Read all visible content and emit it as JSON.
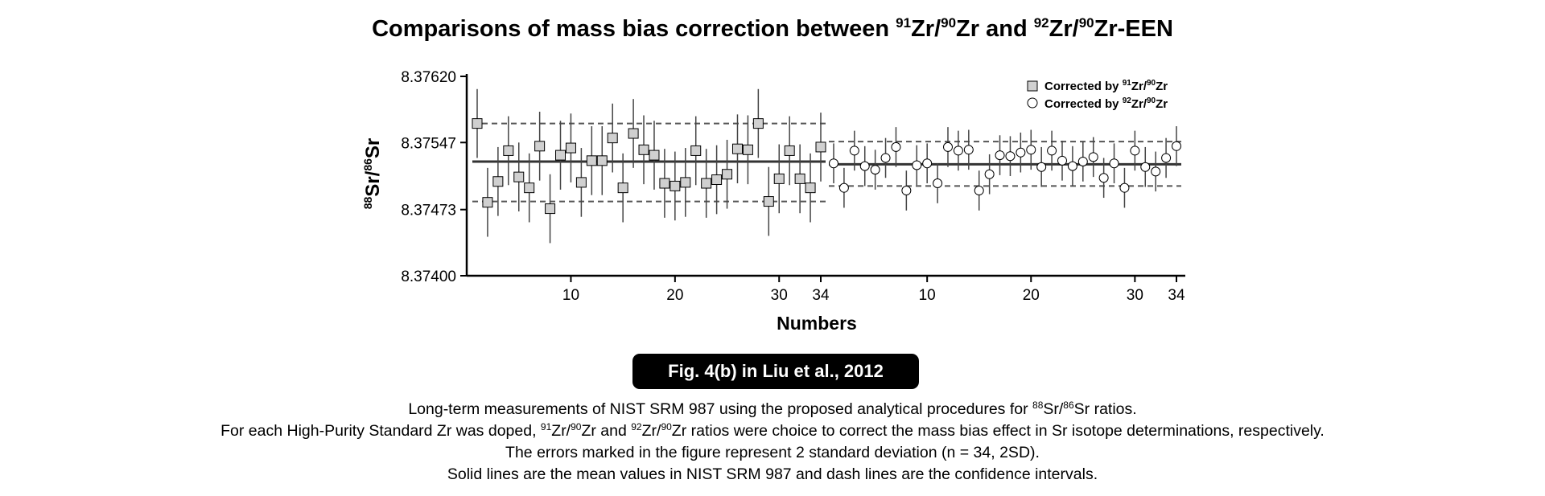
{
  "title": {
    "prefix": "Comparisons of mass bias correction between ",
    "iso1_num": "91",
    "el1": "Zr/",
    "iso1_den": "90",
    "el1b": "Zr and ",
    "iso2_num": "92",
    "el2": "Zr/",
    "iso2_den": "90",
    "el2b": "Zr-EEN"
  },
  "badge": "Fig. 4(b) in Liu et al., 2012",
  "caption": {
    "line1_pre": "Long-term measurements of NIST SRM 987 using the proposed analytical procedures for ",
    "line1_sup1": "88",
    "line1_mid": "Sr/",
    "line1_sup2": "86",
    "line1_post": "Sr ratios.",
    "line2_pre": "For each High-Purity Standard Zr was doped, ",
    "line2_sup1": "91",
    "line2_a": "Zr/",
    "line2_sup2": "90",
    "line2_b": "Zr and ",
    "line2_sup3": "92",
    "line2_c": "Zr/",
    "line2_sup4": "90",
    "line2_post": "Zr ratios were choice to correct the mass bias effect in Sr isotope determinations, respectively.",
    "line3": "The errors marked in the figure represent 2 standard deviation (n = 34, 2SD).",
    "line4": "Solid lines are the mean values in NIST SRM 987 and dash lines are the confidence intervals."
  },
  "chart_data": {
    "type": "scatter",
    "xlabel": "Numbers",
    "ylabel": {
      "sup1": "88",
      "a": "Sr/",
      "sup2": "86",
      "b": "Sr"
    },
    "ylim": [
      8.374,
      8.3762
    ],
    "yticks": [
      "8.37620",
      "8.37547",
      "8.37473",
      "8.37400"
    ],
    "xticks": [
      "10",
      "20",
      "30",
      "34"
    ],
    "legend_position": "top-right",
    "series": [
      {
        "name": "Corrected by 91Zr/90Zr",
        "legend": {
          "pre": "Corrected by ",
          "sup1": "91",
          "a": "Zr/",
          "sup2": "90",
          "b": "Zr"
        },
        "marker": "square",
        "x": [
          1,
          2,
          3,
          4,
          5,
          6,
          7,
          8,
          9,
          10,
          11,
          12,
          13,
          14,
          15,
          16,
          17,
          18,
          19,
          20,
          21,
          22,
          23,
          24,
          25,
          26,
          27,
          28,
          29,
          30,
          31,
          32,
          33,
          34
        ],
        "y": [
          8.37568,
          8.37481,
          8.37504,
          8.37538,
          8.37509,
          8.37497,
          8.37543,
          8.37474,
          8.37533,
          8.37541,
          8.37503,
          8.37527,
          8.37527,
          8.37552,
          8.37497,
          8.37557,
          8.37539,
          8.37533,
          8.37502,
          8.37499,
          8.37503,
          8.37538,
          8.37502,
          8.37506,
          8.37512,
          8.3754,
          8.37539,
          8.37568,
          8.37482,
          8.37507,
          8.37538,
          8.37507,
          8.37497,
          8.37542
        ],
        "error": [
          0.00038,
          0.00038,
          0.00038,
          0.00038,
          0.00038,
          0.00038,
          0.00038,
          0.00038,
          0.00038,
          0.00038,
          0.00038,
          0.00038,
          0.00038,
          0.00038,
          0.00038,
          0.00038,
          0.00038,
          0.00038,
          0.00038,
          0.00038,
          0.00038,
          0.00038,
          0.00038,
          0.00038,
          0.00038,
          0.00038,
          0.00038,
          0.00038,
          0.00038,
          0.00038,
          0.00038,
          0.00038,
          0.00038,
          0.00038
        ],
        "mean": 8.37526,
        "ci": [
          8.37568,
          8.37482
        ]
      },
      {
        "name": "Corrected by 92Zr/90Zr",
        "legend": {
          "pre": "Corrected by ",
          "sup1": "92",
          "a": "Zr/",
          "sup2": "90",
          "b": "Zr"
        },
        "marker": "circle",
        "x": [
          1,
          2,
          3,
          4,
          5,
          6,
          7,
          8,
          9,
          10,
          11,
          12,
          13,
          14,
          15,
          16,
          17,
          18,
          19,
          20,
          21,
          22,
          23,
          24,
          25,
          26,
          27,
          28,
          29,
          30,
          31,
          32,
          33,
          34
        ],
        "y": [
          8.37524,
          8.37497,
          8.37538,
          8.37521,
          8.37517,
          8.3753,
          8.37542,
          8.37494,
          8.37522,
          8.37524,
          8.37502,
          8.37542,
          8.37538,
          8.37539,
          8.37494,
          8.37512,
          8.37533,
          8.37532,
          8.37536,
          8.37539,
          8.3752,
          8.37538,
          8.37527,
          8.37521,
          8.37526,
          8.37531,
          8.37508,
          8.37524,
          8.37497,
          8.37538,
          8.3752,
          8.37515,
          8.3753,
          8.37543
        ],
        "error": [
          0.00022,
          0.00022,
          0.00022,
          0.00022,
          0.00022,
          0.00022,
          0.00022,
          0.00022,
          0.00022,
          0.00022,
          0.00022,
          0.00022,
          0.00022,
          0.00022,
          0.00022,
          0.00022,
          0.00022,
          0.00022,
          0.00022,
          0.00022,
          0.00022,
          0.00022,
          0.00022,
          0.00022,
          0.00022,
          0.00022,
          0.00022,
          0.00022,
          0.00022,
          0.00022,
          0.00022,
          0.00022,
          0.00022,
          0.00022
        ],
        "mean": 8.37523,
        "ci": [
          8.37548,
          8.37499
        ]
      }
    ]
  }
}
